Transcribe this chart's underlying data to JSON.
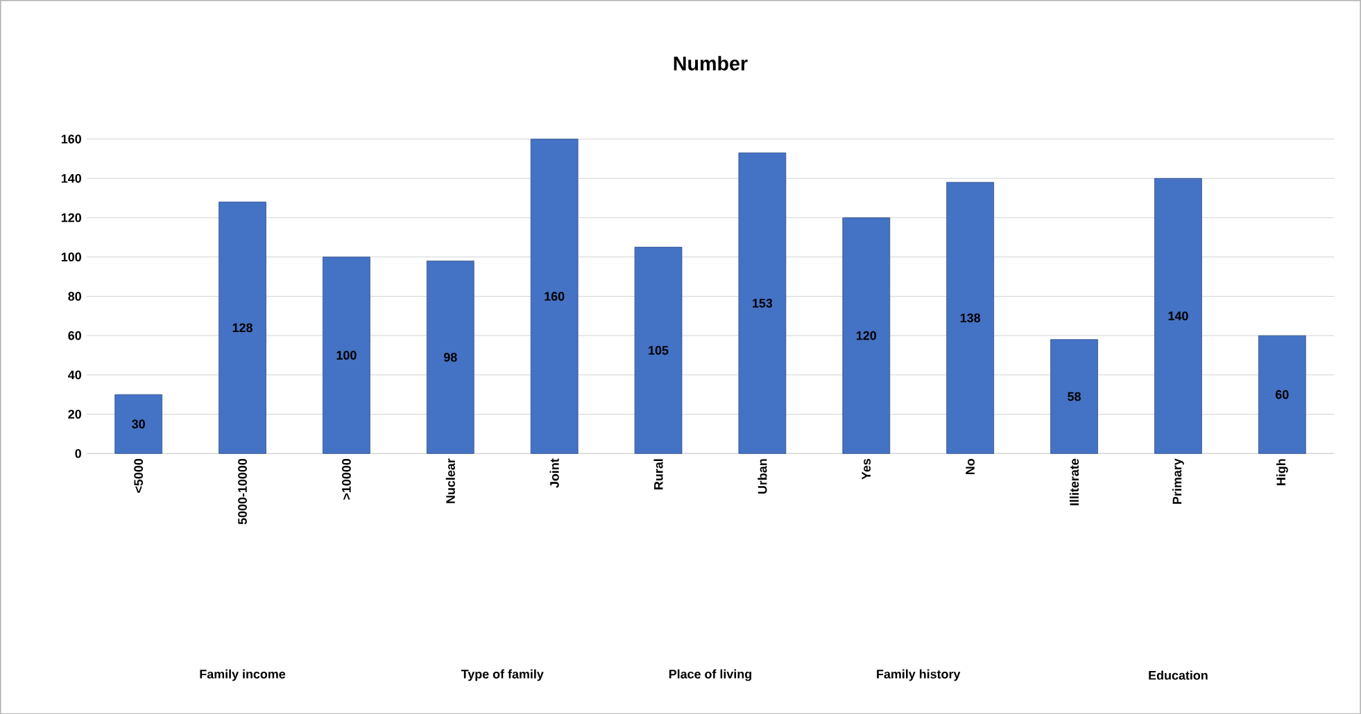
{
  "chart_data": {
    "type": "bar",
    "title": "Number",
    "categories": [
      "<5000",
      "5000-10000",
      ">10000",
      "Nuclear",
      "Joint",
      "Rural",
      "Urban",
      "Yes",
      "No",
      "Illiterate",
      "Primary",
      "High"
    ],
    "values": [
      30,
      128,
      100,
      98,
      160,
      105,
      153,
      120,
      138,
      58,
      140,
      60
    ],
    "color": "#4472c4",
    "ylim": [
      0,
      160
    ],
    "yticks": [
      0,
      20,
      40,
      60,
      80,
      100,
      120,
      140,
      160
    ],
    "grid": "y",
    "data_labels": true,
    "annotations": [
      "Family income",
      "Type of family",
      "Place of living",
      "Family history",
      "Education"
    ]
  }
}
